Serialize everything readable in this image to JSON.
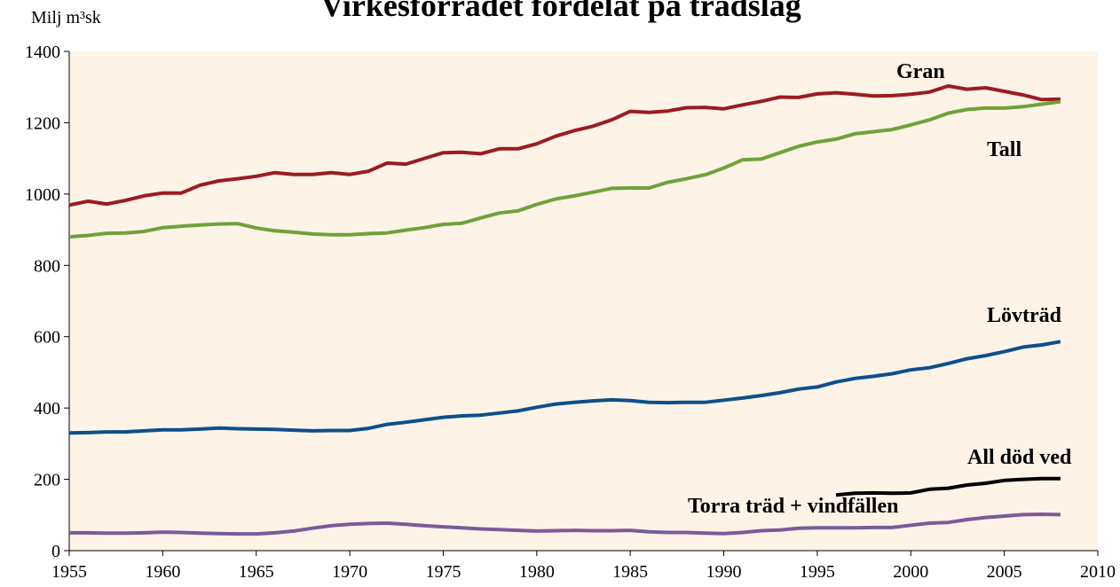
{
  "chart_data": {
    "type": "line",
    "title": "Virkesförrådet fördelat på trädslag",
    "y_label": "Milj m³sk",
    "x": [
      1955,
      1956,
      1957,
      1958,
      1959,
      1960,
      1961,
      1962,
      1963,
      1964,
      1965,
      1966,
      1967,
      1968,
      1969,
      1970,
      1971,
      1972,
      1973,
      1974,
      1975,
      1976,
      1977,
      1978,
      1979,
      1980,
      1981,
      1982,
      1983,
      1984,
      1985,
      1986,
      1987,
      1988,
      1989,
      1990,
      1991,
      1992,
      1993,
      1994,
      1995,
      1996,
      1997,
      1998,
      1999,
      2000,
      2001,
      2002,
      2003,
      2004,
      2005,
      2006,
      2007,
      2008
    ],
    "series": [
      {
        "name": "Gran",
        "color": "#9b1c20",
        "values": [
          969,
          980,
          972,
          982,
          995,
          1003,
          1003,
          1025,
          1037,
          1043,
          1050,
          1060,
          1055,
          1055,
          1060,
          1055,
          1064,
          1087,
          1084,
          1100,
          1116,
          1117,
          1113,
          1127,
          1127,
          1141,
          1162,
          1178,
          1190,
          1208,
          1232,
          1229,
          1233,
          1242,
          1243,
          1239,
          1250,
          1260,
          1272,
          1271,
          1281,
          1284,
          1280,
          1275,
          1276,
          1280,
          1286,
          1303,
          1294,
          1298,
          1288,
          1278,
          1265,
          1266
        ]
      },
      {
        "name": "Tall",
        "color": "#6fa23a",
        "values": [
          880,
          884,
          890,
          891,
          895,
          906,
          910,
          913,
          916,
          917,
          905,
          897,
          893,
          888,
          886,
          886,
          889,
          891,
          899,
          906,
          915,
          918,
          933,
          947,
          953,
          971,
          986,
          995,
          1005,
          1016,
          1017,
          1017,
          1033,
          1043,
          1054,
          1073,
          1096,
          1098,
          1116,
          1134,
          1146,
          1154,
          1169,
          1175,
          1181,
          1194,
          1208,
          1227,
          1237,
          1241,
          1241,
          1245,
          1252,
          1259
        ]
      },
      {
        "name": "Lövträd",
        "color": "#0d4f8b",
        "values": [
          330,
          331,
          333,
          333,
          336,
          339,
          339,
          341,
          344,
          342,
          341,
          340,
          338,
          336,
          337,
          337,
          343,
          354,
          360,
          367,
          374,
          378,
          380,
          386,
          392,
          402,
          411,
          416,
          420,
          423,
          421,
          416,
          415,
          416,
          416,
          422,
          428,
          435,
          443,
          453,
          459,
          473,
          483,
          489,
          496,
          507,
          513,
          525,
          538,
          547,
          558,
          571,
          577,
          586
        ]
      },
      {
        "name": "All död ved",
        "color": "#000000",
        "values": [
          null,
          null,
          null,
          null,
          null,
          null,
          null,
          null,
          null,
          null,
          null,
          null,
          null,
          null,
          null,
          null,
          null,
          null,
          null,
          null,
          null,
          null,
          null,
          null,
          null,
          null,
          null,
          null,
          null,
          null,
          null,
          null,
          null,
          null,
          null,
          null,
          null,
          null,
          null,
          null,
          null,
          156,
          161,
          162,
          161,
          162,
          172,
          175,
          184,
          189,
          197,
          200,
          202,
          202
        ]
      },
      {
        "name": "Torra träd + vindfällen",
        "color": "#7b5a9a",
        "values": [
          50,
          50,
          49,
          49,
          50,
          52,
          51,
          49,
          48,
          47,
          47,
          50,
          55,
          63,
          70,
          74,
          76,
          77,
          74,
          70,
          67,
          64,
          61,
          59,
          57,
          55,
          56,
          57,
          56,
          56,
          57,
          53,
          51,
          51,
          49,
          48,
          51,
          56,
          58,
          63,
          64,
          64,
          64,
          65,
          65,
          71,
          77,
          79,
          87,
          93,
          97,
          101,
          102,
          101
        ]
      }
    ],
    "xlim": [
      1955,
      2010
    ],
    "xticks": [
      1955,
      1960,
      1965,
      1970,
      1975,
      1980,
      1985,
      1990,
      1995,
      2000,
      2005,
      2010
    ],
    "ylim": [
      0,
      1400
    ],
    "yticks": [
      0,
      200,
      400,
      600,
      800,
      1000,
      1200,
      1400
    ],
    "background": "#fdf3e7"
  }
}
